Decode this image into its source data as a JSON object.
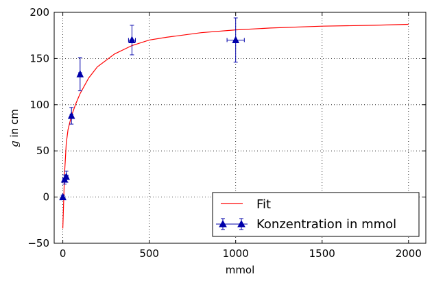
{
  "chart_data": {
    "type": "scatter",
    "xlabel": "mmol",
    "ylabel_var": "g",
    "ylabel_rest": " in cm",
    "xlim": [
      -50,
      2100
    ],
    "ylim": [
      -50,
      200
    ],
    "xticks": [
      0,
      500,
      1000,
      1500,
      2000
    ],
    "yticks": [
      -50,
      0,
      50,
      100,
      150,
      200
    ],
    "xtick_labels": [
      "0",
      "500",
      "1000",
      "1500",
      "2000"
    ],
    "ytick_labels": [
      "−50",
      "0",
      "50",
      "100",
      "150",
      "200"
    ],
    "grid": true,
    "legend_position": "lower-right",
    "series": [
      {
        "name": "Fit",
        "kind": "line",
        "color": "#ff0000",
        "x": [
          0,
          10,
          20,
          30,
          50,
          75,
          100,
          150,
          200,
          300,
          400,
          500,
          600,
          800,
          1000,
          1200,
          1500,
          1800,
          2000
        ],
        "y": [
          -34,
          25,
          58,
          73,
          88,
          101,
          112,
          129,
          141,
          155,
          164,
          170,
          173,
          178,
          181,
          183,
          185,
          186,
          187
        ]
      },
      {
        "name": "Konzentration in mmol",
        "kind": "errorbar",
        "color": "#0000aa",
        "marker": "triangle",
        "points": [
          {
            "x": 0,
            "y": 0,
            "yerr": 2,
            "xerr": 3
          },
          {
            "x": 10,
            "y": 19,
            "yerr": 5,
            "xerr": 10
          },
          {
            "x": 20,
            "y": 22,
            "yerr": 6,
            "xerr": 10
          },
          {
            "x": 50,
            "y": 88,
            "yerr": 9,
            "xerr": 8
          },
          {
            "x": 100,
            "y": 133,
            "yerr": 18,
            "xerr": 8
          },
          {
            "x": 400,
            "y": 170,
            "yerr": 16,
            "xerr": 20
          },
          {
            "x": 1000,
            "y": 170,
            "yerr": 24,
            "xerr": 50
          }
        ]
      }
    ]
  }
}
